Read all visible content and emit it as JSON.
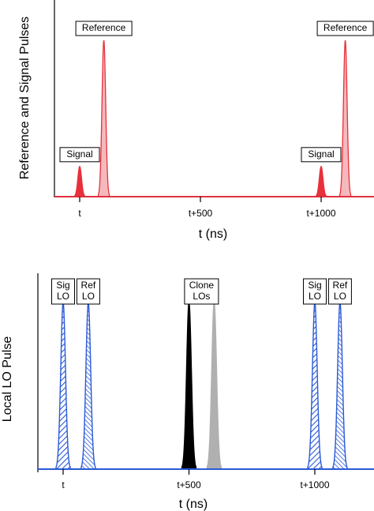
{
  "chart_data": [
    {
      "type": "line",
      "title": "",
      "xlabel": "t (ns)",
      "ylabel": "Reference and Signal Pulses",
      "x_ticks": [
        "t",
        "t+500",
        "t+1000"
      ],
      "x_tick_values": [
        0,
        500,
        1000
      ],
      "xlim": [
        -100,
        1120
      ],
      "colors": {
        "axis": "#000000",
        "baseline": "#e03040",
        "pulse_stroke": "#e8303a",
        "signal_fill": "#e8303a",
        "reference_fill": "#f4b9bd"
      },
      "series": [
        {
          "name": "Signal",
          "kind": "signal",
          "fill": "solid",
          "pulses": [
            {
              "center": 0,
              "height": 0.17,
              "label": "Signal"
            },
            {
              "center": 1000,
              "height": 0.17,
              "label": "Signal"
            }
          ]
        },
        {
          "name": "Reference",
          "kind": "reference",
          "fill": "light",
          "pulses": [
            {
              "center": 100,
              "height": 0.88,
              "label": "Reference"
            },
            {
              "center": 1100,
              "height": 0.88,
              "label": "Reference"
            }
          ]
        }
      ]
    },
    {
      "type": "line",
      "title": "",
      "xlabel": "t (ns)",
      "ylabel": "Local LO Pulse",
      "x_ticks": [
        "t",
        "t+500",
        "t+1000"
      ],
      "x_tick_values": [
        0,
        500,
        1000
      ],
      "xlim": [
        -110,
        1150
      ],
      "colors": {
        "axis": "#000000",
        "baseline": "#2a5ad6",
        "lo_stroke": "#2a5ad6",
        "clone1_fill": "#000000",
        "clone2_fill": "#b0b0b0"
      },
      "series": [
        {
          "name": "Sig LO",
          "fill": "hatch-forward",
          "pulses": [
            {
              "center": 0,
              "height": 0.88,
              "label": "Sig\nLO"
            },
            {
              "center": 1000,
              "height": 0.88,
              "label": "Sig\nLO"
            }
          ]
        },
        {
          "name": "Ref LO",
          "fill": "hatch-back",
          "pulses": [
            {
              "center": 100,
              "height": 0.88,
              "label": "Ref\nLO"
            },
            {
              "center": 1100,
              "height": 0.88,
              "label": "Ref\nLO"
            }
          ]
        },
        {
          "name": "Clone LOs",
          "fill": "solid",
          "pulses": [
            {
              "center": 500,
              "height": 0.88,
              "color": "#000000",
              "label": "Clone\nLOs"
            },
            {
              "center": 600,
              "height": 0.88,
              "color": "#b0b0b0"
            }
          ]
        }
      ]
    }
  ]
}
